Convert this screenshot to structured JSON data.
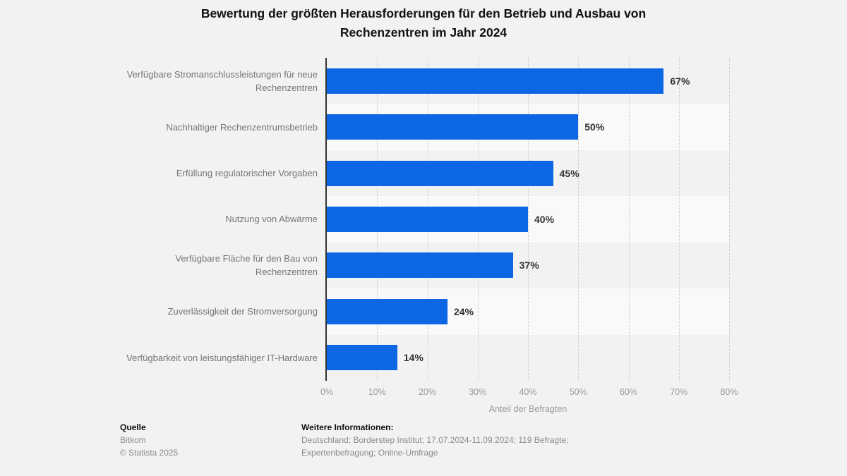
{
  "title": {
    "line1": "Bewertung der größten Herausforderungen für den Betrieb und Ausbau von",
    "line2": "Rechenzentren im Jahr 2024"
  },
  "chart_data": {
    "type": "bar",
    "orientation": "horizontal",
    "categories": [
      "Verfügbare Stromanschlussleistungen für neue Rechenzentren",
      "Nachhaltiger Rechenzentrumsbetrieb",
      "Erfüllung regulatorischer Vorgaben",
      "Nutzung von Abwärme",
      "Verfügbare Fläche für den Bau von Rechenzentren",
      "Zuverlässigkeit der Stromversorgung",
      "Verfügbarkeit von leistungsfähiger IT-Hardware"
    ],
    "values": [
      67,
      50,
      45,
      40,
      37,
      24,
      14
    ],
    "value_labels": [
      "67%",
      "50%",
      "45%",
      "40%",
      "37%",
      "24%",
      "14%"
    ],
    "xlabel": "Anteil der Befragten",
    "x_ticks": [
      "0%",
      "10%",
      "20%",
      "30%",
      "40%",
      "50%",
      "60%",
      "70%",
      "80%"
    ],
    "x_tick_values": [
      0,
      10,
      20,
      30,
      40,
      50,
      60,
      70,
      80
    ],
    "xlim": [
      0,
      80
    ],
    "grid": true,
    "legend": false,
    "colors": {
      "bar": "#0d66e4",
      "band_light": "#f9f9f9",
      "band_dark": "#f2f2f2",
      "gridline": "#c8c8c8",
      "axis": "#333333",
      "category_label": "#757575",
      "tick_label": "#999999",
      "value_label": "#333333"
    }
  },
  "footer": {
    "source_heading": "Quelle",
    "source_name": "Bitkom",
    "copyright": "© Statista 2025",
    "info_heading": "Weitere Informationen:",
    "info_line1": "Deutschland; Borderstep Institut; 17.07.2024-11.09.2024; 119 Befragte;",
    "info_line2": "Expertenbefragung; Online-Umfrage"
  }
}
